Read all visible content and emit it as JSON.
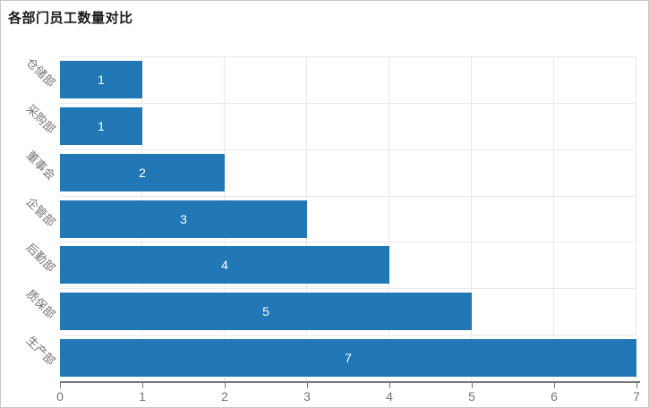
{
  "chart_data": {
    "type": "bar",
    "orientation": "horizontal",
    "title": "各部门员工数量对比",
    "categories": [
      "仓储部",
      "采购部",
      "董事会",
      "企管部",
      "后勤部",
      "质保部",
      "生产部"
    ],
    "values": [
      1,
      1,
      2,
      3,
      4,
      5,
      7
    ],
    "value_label_position": "inside-center",
    "xlabel": "",
    "ylabel": "",
    "xlim": [
      0,
      7
    ],
    "x_ticks": [
      0,
      1,
      2,
      3,
      4,
      5,
      6,
      7
    ],
    "grid": true,
    "legend": "none",
    "colors": {
      "bar": "#2277b6",
      "value_label": "#ffffff",
      "grid": "#e9e9e9",
      "axis_line": "#7a7a7a",
      "tick_label": "#757575",
      "title": "#1a1a1a",
      "background": "#ffffff",
      "window_border": "#c8c8c8"
    }
  }
}
